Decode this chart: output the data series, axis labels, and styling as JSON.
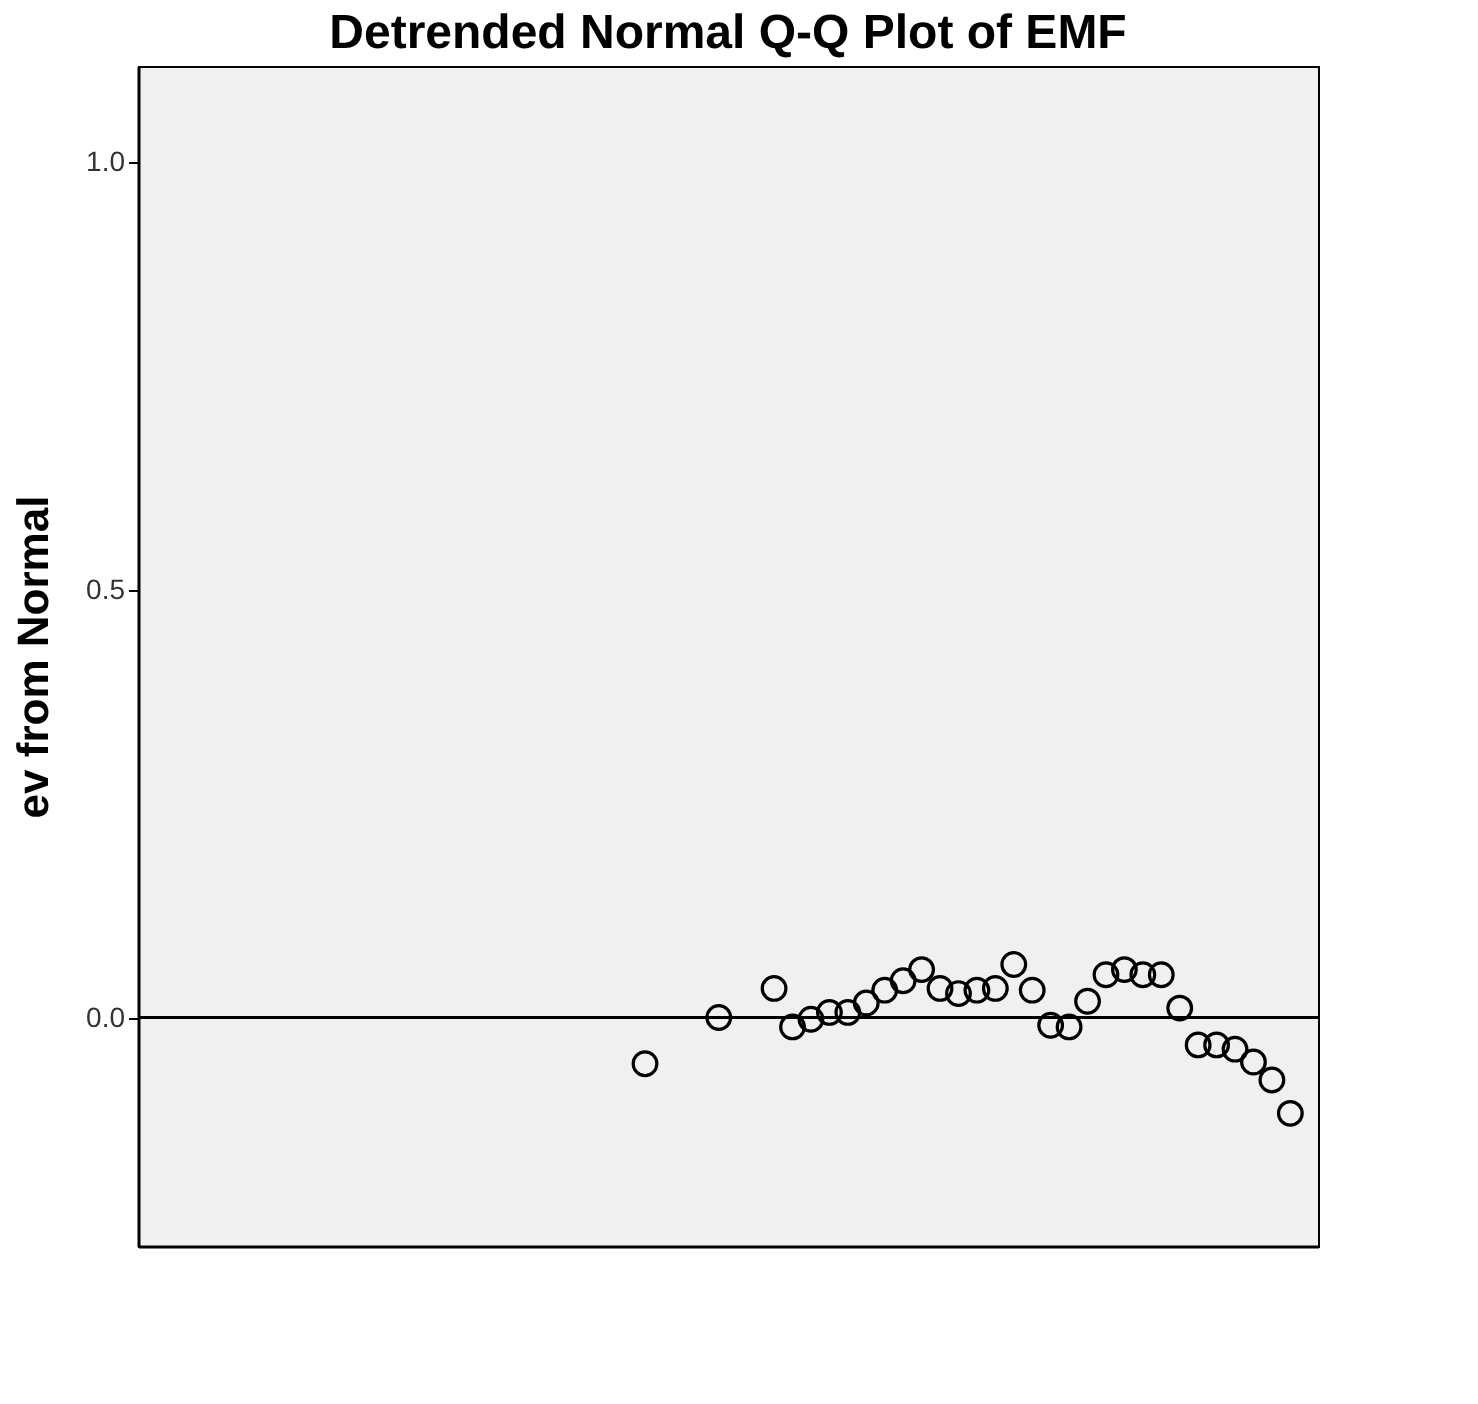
{
  "chart_data": {
    "type": "scatter",
    "title": "Detrended Normal Q-Q Plot of EMF",
    "ylabel": "ev from Normal",
    "categories": [
      null,
      null,
      null,
      null,
      null,
      null,
      null,
      null,
      null,
      null,
      null,
      null,
      null,
      null,
      null,
      null,
      null,
      null,
      null,
      null,
      null,
      null,
      null,
      null,
      null,
      null,
      null,
      null,
      null,
      null,
      null,
      null,
      null,
      null,
      null,
      null,
      null,
      null,
      null,
      null,
      null,
      null,
      null,
      null,
      null,
      null,
      null,
      null,
      null,
      null,
      null,
      null,
      null,
      null,
      null,
      null,
      null,
      null,
      null,
      null,
      null,
      null,
      null,
      null
    ],
    "series": [
      {
        "color": "#000000",
        "values": [
          null,
          null,
          null,
          null,
          null,
          null,
          null,
          null,
          null,
          null,
          null,
          null,
          null,
          null,
          null,
          null,
          null,
          null,
          null,
          null,
          null,
          null,
          null,
          null,
          null,
          null,
          null,
          -0.054,
          null,
          null,
          null,
          0.0,
          null,
          null,
          0.034,
          -0.011,
          -0.002,
          0.006,
          0.006,
          0.017,
          0.032,
          0.043,
          0.056,
          0.034,
          0.028,
          0.032,
          0.034,
          0.062,
          0.032,
          -0.009,
          -0.011,
          0.019,
          0.05,
          0.056,
          0.05,
          0.05,
          0.011,
          -0.032,
          -0.032,
          -0.037,
          -0.052,
          -0.073,
          -0.112,
          null
        ]
      }
    ],
    "ylim": [
      -0.267,
      1.112
    ],
    "yticks": [
      {
        "value": 0,
        "label": "0.0"
      },
      {
        "value": 0.5,
        "label": "0.5"
      },
      {
        "value": 1,
        "label": "1.0"
      }
    ],
    "tick_labels": "y",
    "marker": "circle",
    "grid": false,
    "legend": false,
    "ref_lines": [
      {
        "axis": "y",
        "value": 0,
        "color": "#000000",
        "line_style": "solid"
      }
    ]
  }
}
